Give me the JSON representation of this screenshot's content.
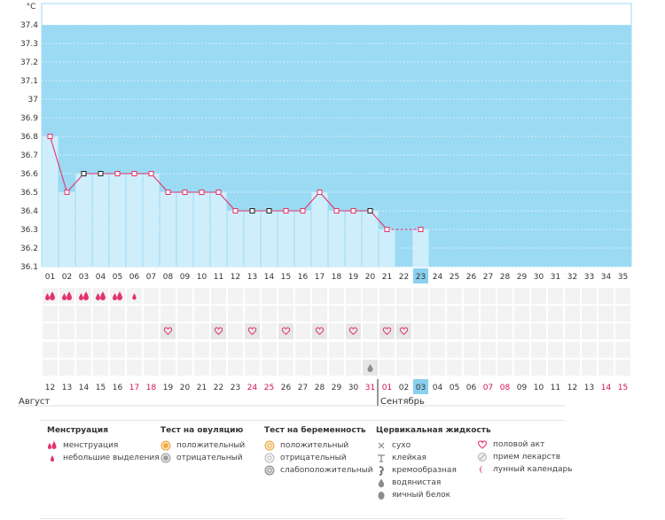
{
  "chart_data": {
    "type": "line",
    "unit_label": "°C",
    "y_ticks": [
      "37.4",
      "37.3",
      "37.2",
      "37.1",
      "37",
      "36.9",
      "36.8",
      "36.7",
      "36.6",
      "36.5",
      "36.4",
      "36.3",
      "36.2",
      "36.1"
    ],
    "ylim": [
      36.1,
      37.4
    ],
    "cycle_days": [
      "01",
      "02",
      "03",
      "04",
      "05",
      "06",
      "07",
      "08",
      "09",
      "10",
      "11",
      "12",
      "13",
      "14",
      "15",
      "16",
      "17",
      "18",
      "19",
      "20",
      "21",
      "22",
      "23",
      "24",
      "25",
      "26",
      "27",
      "28",
      "29",
      "30",
      "31",
      "32",
      "33",
      "34",
      "35"
    ],
    "today_index": 22,
    "temperatures": [
      36.8,
      36.5,
      36.6,
      36.6,
      36.6,
      36.6,
      36.6,
      36.5,
      36.5,
      36.5,
      36.5,
      36.4,
      36.4,
      36.4,
      36.4,
      36.4,
      36.5,
      36.4,
      36.4,
      36.4,
      36.3,
      null,
      36.3
    ],
    "point_style": [
      "pink",
      "pink",
      "black",
      "black",
      "pink",
      "pink",
      "pink",
      "pink",
      "pink",
      "pink",
      "pink",
      "pink",
      "black",
      "black",
      "pink",
      "pink",
      "pink",
      "pink",
      "pink",
      "black",
      "pink",
      null,
      "pink"
    ],
    "menstruation": [
      "full",
      "full",
      "full",
      "full",
      "full",
      "light"
    ],
    "intercourse_days": [
      7,
      10,
      12,
      14,
      16,
      18,
      20,
      21
    ],
    "fluid_watery_days": [
      19
    ],
    "calendar_dates": [
      "12",
      "13",
      "14",
      "15",
      "16",
      "17",
      "18",
      "19",
      "20",
      "21",
      "22",
      "23",
      "24",
      "25",
      "26",
      "27",
      "28",
      "29",
      "30",
      "31",
      "01",
      "02",
      "03",
      "04",
      "05",
      "06",
      "07",
      "08",
      "09",
      "10",
      "11",
      "12",
      "13",
      "14",
      "15"
    ],
    "weekend_indices": [
      5,
      6,
      12,
      13,
      19,
      20,
      26,
      27,
      33,
      34
    ],
    "months": [
      {
        "name": "Август",
        "start_index": 0
      },
      {
        "name": "Сентябрь",
        "start_index": 20
      }
    ],
    "colors": {
      "period_fill": "#9bdaf3",
      "bar_fill": "#cfeefc",
      "line": "#e2336b",
      "red_text": "#d40f5b",
      "today": "#8ad0ef"
    }
  },
  "legend": {
    "menstruation": {
      "title": "Менструация",
      "items": [
        {
          "label": "менструация",
          "icon": "drops-icon"
        },
        {
          "label": "небольшие выделения",
          "icon": "drop-small-icon"
        }
      ]
    },
    "ovulation": {
      "title": "Тест на овуляцию",
      "items": [
        {
          "label": "положительный",
          "icon": "orange-circle-icon"
        },
        {
          "label": "отрицательный",
          "icon": "grey-circle-icon"
        }
      ]
    },
    "pregnancy": {
      "title": "Тест на беременность",
      "items": [
        {
          "label": "положительный",
          "icon": "orange-ring-icon"
        },
        {
          "label": "отрицательный",
          "icon": "white-ring-icon"
        },
        {
          "label": "слабоположительный",
          "icon": "grey-ring-icon"
        }
      ]
    },
    "cervical": {
      "title": "Цервикальная жидкость",
      "items": [
        {
          "label": "сухо",
          "icon": "cross-icon"
        },
        {
          "label": "клейкая",
          "icon": "sticky-icon"
        },
        {
          "label": "кремообразная",
          "icon": "creamy-icon"
        },
        {
          "label": "водянистая",
          "icon": "water-drop-icon"
        },
        {
          "label": "яичный белок",
          "icon": "egg-white-icon"
        }
      ]
    },
    "other": {
      "items": [
        {
          "label": "половой акт",
          "icon": "heart-icon"
        },
        {
          "label": "прием лекарств",
          "icon": "pill-icon"
        },
        {
          "label": "лунный календарь",
          "icon": "moon-icon"
        }
      ]
    }
  }
}
